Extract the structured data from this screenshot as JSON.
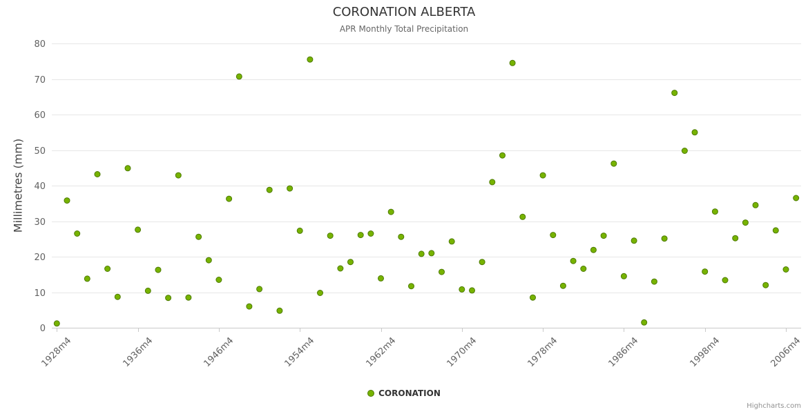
{
  "chart_data": {
    "type": "scatter",
    "title": "CORONATION ALBERTA",
    "subtitle": "APR Monthly Total Precipitation",
    "ylabel": "Millimetres (mm)",
    "ylim": [
      0,
      80
    ],
    "ytick_values": [
      0,
      10,
      20,
      30,
      40,
      50,
      60,
      70,
      80
    ],
    "x_tick_labels": [
      "1928m4",
      "1936m4",
      "1946m4",
      "1954m4",
      "1962m4",
      "1970m4",
      "1978m4",
      "1986m4",
      "1998m4",
      "2006m4"
    ],
    "x_tick_every": 8,
    "grid": true,
    "legend_position": "bottom",
    "credit": "Highcharts.com",
    "series": [
      {
        "name": "CORONATION",
        "values": [
          1.2,
          35.8,
          26.5,
          13.8,
          43.2,
          16.6,
          8.7,
          44.9,
          27.6,
          10.4,
          16.3,
          8.4,
          42.9,
          8.5,
          25.6,
          19.0,
          13.5,
          36.3,
          70.7,
          6.0,
          10.9,
          38.8,
          4.8,
          39.2,
          27.3,
          75.5,
          9.8,
          25.9,
          16.7,
          18.5,
          26.1,
          26.5,
          13.9,
          32.6,
          25.6,
          11.7,
          20.8,
          21.0,
          15.7,
          24.3,
          10.8,
          10.5,
          18.5,
          41.0,
          48.5,
          74.5,
          31.2,
          8.5,
          42.9,
          26.1,
          11.8,
          18.8,
          16.6,
          21.9,
          25.9,
          46.2,
          14.5,
          24.5,
          1.5,
          13.0,
          25.1,
          66.1,
          49.8,
          55.0,
          15.8,
          32.7,
          13.4,
          25.2,
          29.6,
          34.5,
          12.0,
          27.4,
          16.4,
          36.5
        ]
      }
    ],
    "colors": {
      "marker": "#77b300",
      "marker_line": "#4c7a00",
      "grid": "#e6e6e6",
      "axis_line": "#c9c9c9",
      "tick": "#c9c9c9",
      "title_text": "#333333",
      "subtitle_text": "#666666",
      "axis_label_text": "#606060",
      "axis_title_text": "#444444",
      "legend_text": "#333333",
      "credit_text": "#909090",
      "background": "#ffffff"
    }
  }
}
